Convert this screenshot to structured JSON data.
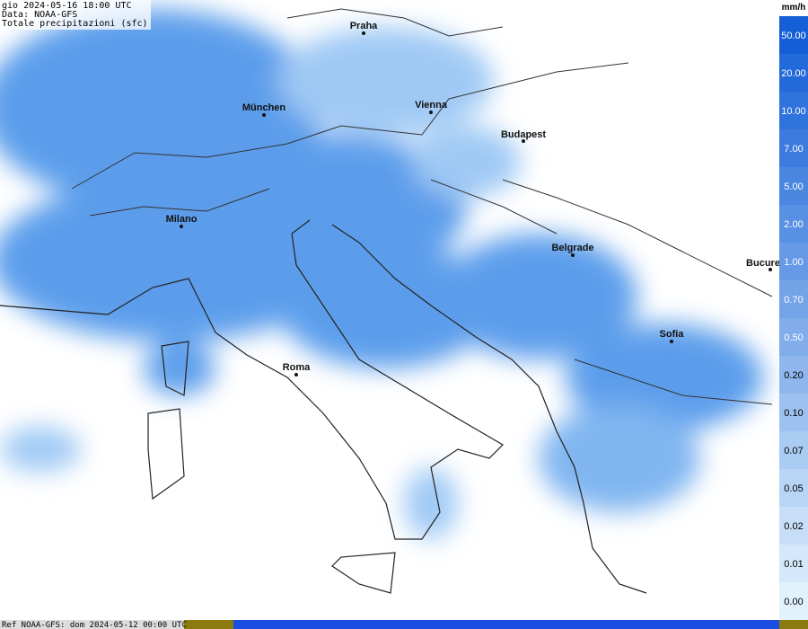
{
  "header": {
    "lines": [
      "gio 2024-05-16 18:00 UTC",
      "Data: NOAA-GFS",
      "Totale precipitazioni (sfc)"
    ]
  },
  "cities": [
    {
      "name": "Praha"
    },
    {
      "name": "München"
    },
    {
      "name": "Vienna"
    },
    {
      "name": "Budapest"
    },
    {
      "name": "Milano"
    },
    {
      "name": "Belgrade"
    },
    {
      "name": "Bucure"
    },
    {
      "name": "Sofia"
    },
    {
      "name": "Roma"
    }
  ],
  "legend": {
    "unit": "mm/h",
    "labels": [
      "50.00",
      "20.00",
      "10.00",
      "7.00",
      "5.00",
      "2.00",
      "1.00",
      "0.70",
      "0.50",
      "0.20",
      "0.10",
      "0.07",
      "0.05",
      "0.02",
      "0.01",
      "0.00"
    ]
  },
  "footer": "Ref NOAA-GFS: dom 2024-05-12 00:00 UTC"
}
